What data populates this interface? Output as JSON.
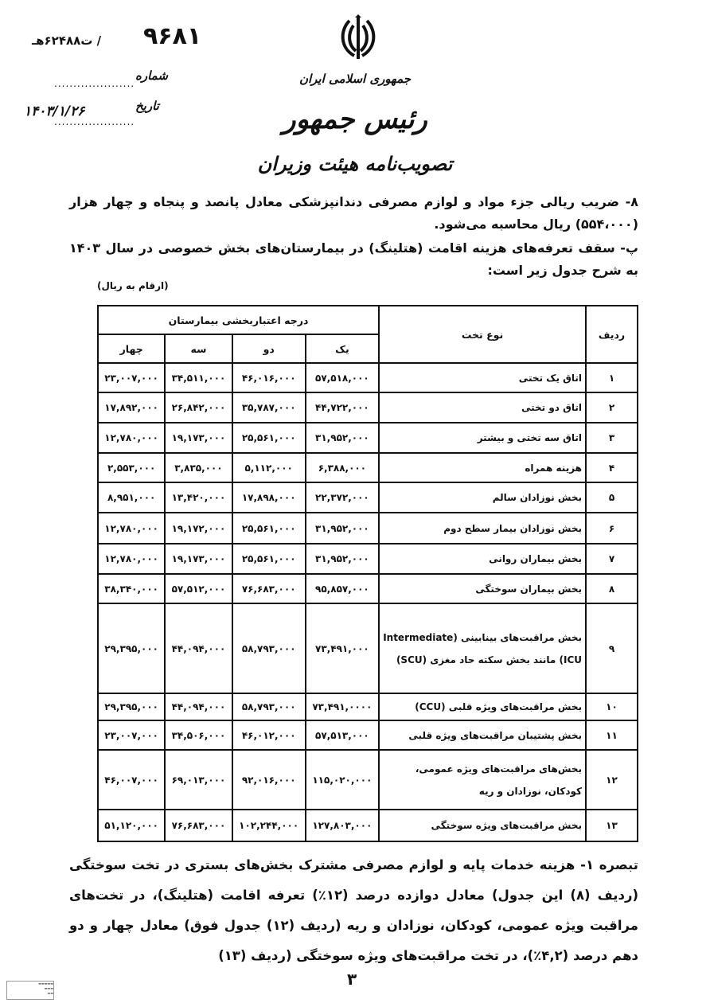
{
  "header": {
    "letter_number": "۹۶۸۱",
    "reference": "ت۶۲۴۸۸هـ /",
    "number_label": "شماره",
    "date_label": "تاریخ",
    "date": "۱۴۰۳/۱/۲۶",
    "country": "جمهوری اسلامی ایران",
    "office": "رئیس جمهور",
    "doc_type": "تصویب‌نامه هیئت وزیران"
  },
  "paragraphs": {
    "p8": "۸- ضریب ریالی جزء مواد و لوازم مصرفی دندانپزشکی معادل پانصد و پنجاه و چهار هزار (۵۵۴،۰۰۰) ریال محاسبه می‌شود.",
    "pb": "پ- سقف تعرفه‌های هزینه اقامت (هتلینگ) در بیمارستان‌های بخش خصوصی در سال ۱۴۰۳ به شرح جدول زیر است:",
    "unit_note": "(ارقام به ریال)",
    "note1": "تبصره ۱- هزینه خدمات پایه و لوازم مصرفی مشترک بخش‌های بستری در تخت سوختگی (ردیف (۸) این جدول) معادل دوازده درصد (۱۲٪) تعرفه اقامت (هتلینگ)، در تخت‌های مراقبت ویژه عمومی، کودکان، نوزادان و ریه (ردیف (۱۲) جدول فوق) معادل چهار و دو دهم درصد (۴,۲٪)، در تخت مراقبت‌های ویژه سوختگی (ردیف (۱۳)"
  },
  "table": {
    "col_row": "ردیف",
    "col_type": "نوع تخت",
    "col_group": "درجه اعتباربخشی بیمارستان",
    "grades": [
      "یک",
      "دو",
      "سه",
      "چهار"
    ],
    "rows": [
      {
        "n": "۱",
        "name": "اتاق یک تختی",
        "v": [
          "۵۷,۵۱۸,۰۰۰",
          "۴۶,۰۱۶,۰۰۰",
          "۳۴,۵۱۱,۰۰۰",
          "۲۳,۰۰۷,۰۰۰"
        ]
      },
      {
        "n": "۲",
        "name": "اتاق دو تختی",
        "v": [
          "۴۴,۷۲۲,۰۰۰",
          "۳۵,۷۸۷,۰۰۰",
          "۲۶,۸۴۲,۰۰۰",
          "۱۷,۸۹۲,۰۰۰"
        ]
      },
      {
        "n": "۳",
        "name": "اتاق سه تختی و بیشتر",
        "v": [
          "۳۱,۹۵۲,۰۰۰",
          "۲۵,۵۶۱,۰۰۰",
          "۱۹,۱۷۳,۰۰۰",
          "۱۲,۷۸۰,۰۰۰"
        ]
      },
      {
        "n": "۴",
        "name": "هزینه همراه",
        "v": [
          "۶,۳۸۸,۰۰۰",
          "۵,۱۱۲,۰۰۰",
          "۳,۸۳۵,۰۰۰",
          "۲,۵۵۳,۰۰۰"
        ]
      },
      {
        "n": "۵",
        "name": "بخش نوزادان سالم",
        "v": [
          "۲۲,۳۷۲,۰۰۰",
          "۱۷,۸۹۸,۰۰۰",
          "۱۳,۴۲۰,۰۰۰",
          "۸,۹۵۱,۰۰۰"
        ]
      },
      {
        "n": "۶",
        "name": "بخش نوزادان بیمار سطح دوم",
        "v": [
          "۳۱,۹۵۲,۰۰۰",
          "۲۵,۵۶۱,۰۰۰",
          "۱۹,۱۷۲,۰۰۰",
          "۱۲,۷۸۰,۰۰۰"
        ]
      },
      {
        "n": "۷",
        "name": "بخش بیماران روانی",
        "v": [
          "۳۱,۹۵۲,۰۰۰",
          "۲۵,۵۶۱,۰۰۰",
          "۱۹,۱۷۳,۰۰۰",
          "۱۲,۷۸۰,۰۰۰"
        ]
      },
      {
        "n": "۸",
        "name": "بخش بیماران سوختگی",
        "v": [
          "۹۵,۸۵۷,۰۰۰",
          "۷۶,۶۸۳,۰۰۰",
          "۵۷,۵۱۲,۰۰۰",
          "۳۸,۳۴۰,۰۰۰"
        ]
      },
      {
        "n": "۹",
        "name": "بخش مراقبت‌های بینابینی (Intermediate ICU) مانند بخش سکته حاد مغزی (SCU)",
        "v": [
          "۷۳,۴۹۱,۰۰۰",
          "۵۸,۷۹۳,۰۰۰",
          "۴۴,۰۹۴,۰۰۰",
          "۲۹,۳۹۵,۰۰۰"
        ]
      },
      {
        "n": "۱۰",
        "name": "بخش مراقبت‌های ویژه قلبی (CCU)",
        "v": [
          "۷۳,۴۹۱,۰۰۰۰",
          "۵۸,۷۹۳,۰۰۰",
          "۴۴,۰۹۴,۰۰۰",
          "۲۹,۳۹۵,۰۰۰"
        ]
      },
      {
        "n": "۱۱",
        "name": "بخش پشتیبان مراقبت‌های ویژه قلبی",
        "v": [
          "۵۷,۵۱۳,۰۰۰",
          "۴۶,۰۱۲,۰۰۰",
          "۳۴,۵۰۶,۰۰۰",
          "۲۳,۰۰۷,۰۰۰"
        ]
      },
      {
        "n": "۱۲",
        "name": "بخش‌های مراقبت‌های ویژه عمومی، کودکان، نوزادان و ریه",
        "v": [
          "۱۱۵,۰۲۰,۰۰۰",
          "۹۲,۰۱۶,۰۰۰",
          "۶۹,۰۱۳,۰۰۰",
          "۴۶,۰۰۷,۰۰۰"
        ]
      },
      {
        "n": "۱۳",
        "name": "بخش مراقبت‌های ویژه سوختگی",
        "v": [
          "۱۲۷,۸۰۳,۰۰۰",
          "۱۰۲,۲۴۴,۰۰۰",
          "۷۶,۶۸۳,۰۰۰",
          "۵۱,۱۲۰,۰۰۰"
        ]
      }
    ]
  },
  "footer": {
    "page_number": "۳"
  }
}
